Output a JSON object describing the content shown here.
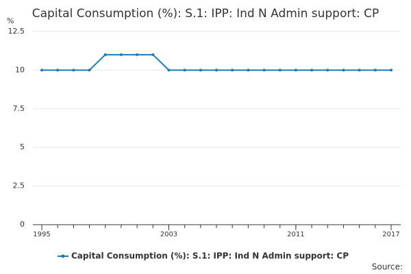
{
  "chart_data": {
    "type": "line",
    "title": "Capital Consumption (%): S.1: IPP: Ind N Admin support: CP",
    "y_label": "%",
    "source": "Source:",
    "x": [
      1995,
      1996,
      1997,
      1998,
      1999,
      2000,
      2001,
      2002,
      2003,
      2004,
      2005,
      2006,
      2007,
      2008,
      2009,
      2010,
      2011,
      2012,
      2013,
      2014,
      2015,
      2016,
      2017
    ],
    "series": [
      {
        "name": "Capital Consumption (%): S.1: IPP: Ind N Admin support: CP",
        "color": "#1a7ab5",
        "values": [
          10,
          10,
          10,
          10,
          11,
          11,
          11,
          11,
          10,
          10,
          10,
          10,
          10,
          10,
          10,
          10,
          10,
          10,
          10,
          10,
          10,
          10,
          10
        ]
      }
    ],
    "xlim": [
      1995,
      2017
    ],
    "xticks": [
      1995,
      2003,
      2011,
      2017
    ],
    "ylim": [
      0,
      12.5
    ],
    "yticks": [
      0,
      2.5,
      5,
      7.5,
      10,
      12.5
    ],
    "grid": true
  }
}
